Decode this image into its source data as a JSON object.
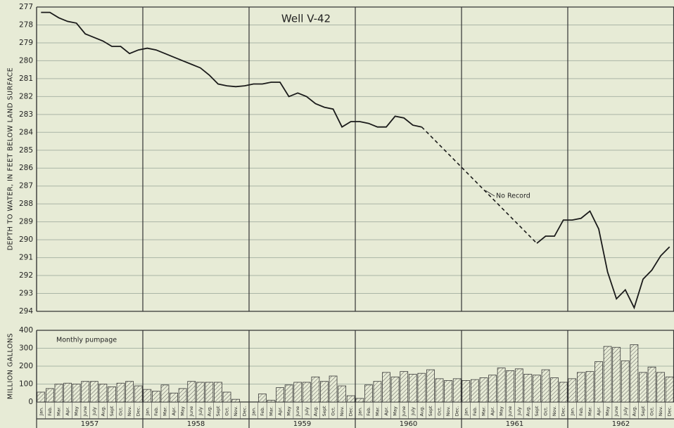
{
  "chart_data": [
    {
      "type": "line",
      "title": "Well V-42",
      "y_label": "DEPTH TO WATER, IN FEET BELOW LAND SURFACE",
      "annotation": "No Record",
      "color": "#1a1a1a",
      "gap_style": "dashed",
      "y_inverted": true,
      "values": [
        277.3,
        277.3,
        277.6,
        277.8,
        277.9,
        278.5,
        278.7,
        278.9,
        279.2,
        279.2,
        279.6,
        279.4,
        279.3,
        279.4,
        279.6,
        279.8,
        280.0,
        280.2,
        280.4,
        280.8,
        281.3,
        281.4,
        281.45,
        281.4,
        281.3,
        281.3,
        281.2,
        281.2,
        282.0,
        281.8,
        282.0,
        282.4,
        282.6,
        282.7,
        283.7,
        283.4,
        283.4,
        283.5,
        283.7,
        283.7,
        283.1,
        283.2,
        283.6,
        283.7,
        null,
        null,
        null,
        null,
        null,
        null,
        null,
        null,
        null,
        null,
        null,
        null,
        290.2,
        289.8,
        289.8,
        288.9,
        288.9,
        288.8,
        288.4,
        289.4,
        291.8,
        293.3,
        292.8,
        293.8,
        292.2,
        291.7,
        290.9,
        290.4
      ],
      "ylim": [
        277,
        294
      ],
      "yticks": [
        277,
        278,
        279,
        280,
        281,
        282,
        283,
        284,
        285,
        286,
        287,
        288,
        289,
        290,
        291,
        292,
        293,
        294
      ],
      "grid": true
    },
    {
      "type": "bar",
      "y_label": "MILLION GALLONS",
      "annotation": "Monthly pumpage",
      "color": "#3a3a3a",
      "categories": [
        "Jan.",
        "Feb.",
        "Mar.",
        "Apr.",
        "May",
        "June",
        "July",
        "Aug.",
        "Sept",
        "Oct.",
        "Nov.",
        "Dec.",
        "Jan.",
        "Feb.",
        "Mar.",
        "Apr.",
        "May",
        "June",
        "July",
        "Aug.",
        "Sept",
        "Oct.",
        "Nov.",
        "Dec.",
        "Jan.",
        "Feb.",
        "Mar.",
        "Apr.",
        "May",
        "June",
        "July",
        "Aug.",
        "Sept",
        "Oct.",
        "Nov.",
        "Dec.",
        "Jan.",
        "Feb.",
        "Mar.",
        "Apr.",
        "May",
        "June",
        "July",
        "Aug.",
        "Sept",
        "Oct.",
        "Nov.",
        "Dec.",
        "Jan.",
        "Feb.",
        "Mar.",
        "Apr.",
        "May",
        "June",
        "July",
        "Aug.",
        "Sept",
        "Oct.",
        "Nov.",
        "Dec.",
        "Jan.",
        "Feb.",
        "Mar.",
        "Apr.",
        "May",
        "June",
        "July",
        "Aug.",
        "Sept",
        "Oct.",
        "Nov.",
        "Dec."
      ],
      "years": [
        "1957",
        "1958",
        "1959",
        "1960",
        "1961",
        "1962"
      ],
      "values": [
        55,
        75,
        100,
        105,
        100,
        115,
        115,
        100,
        85,
        105,
        115,
        90,
        70,
        60,
        95,
        50,
        75,
        115,
        110,
        110,
        110,
        55,
        15,
        0,
        0,
        45,
        10,
        80,
        95,
        110,
        110,
        140,
        115,
        145,
        90,
        35,
        20,
        95,
        115,
        165,
        140,
        170,
        155,
        160,
        180,
        130,
        120,
        130,
        120,
        125,
        135,
        150,
        190,
        175,
        185,
        155,
        150,
        180,
        135,
        110,
        130,
        165,
        170,
        225,
        310,
        305,
        230,
        320,
        165,
        195,
        165,
        140
      ],
      "ylim": [
        0,
        400
      ],
      "yticks": [
        0,
        100,
        200,
        300,
        400
      ],
      "grid": true
    }
  ]
}
